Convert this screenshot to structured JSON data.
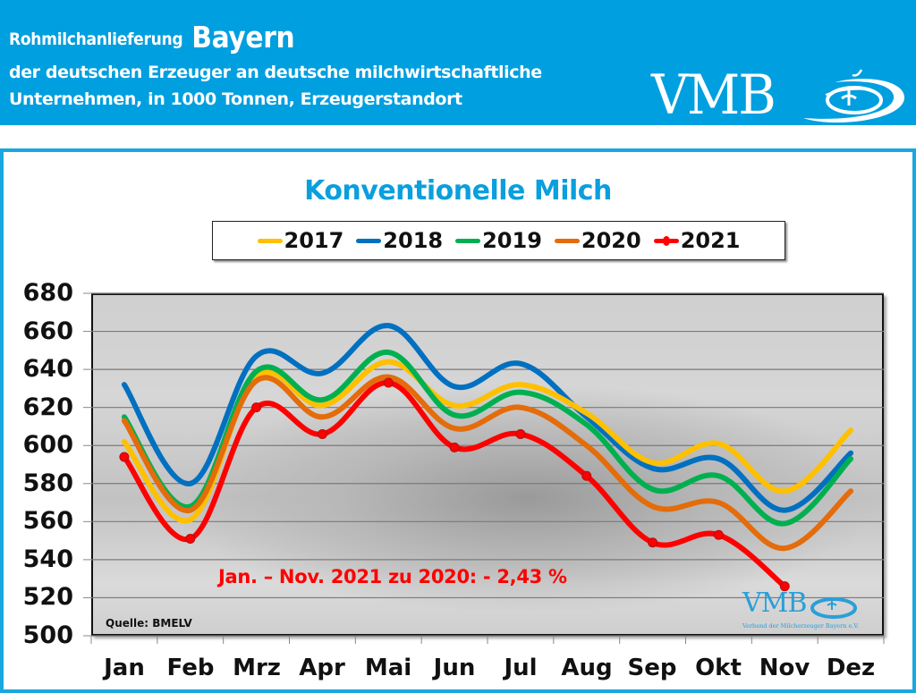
{
  "header": {
    "title_prefix": "Rohmilchanlieferung",
    "title_region": "Bayern",
    "subtitle_line1": "der deutschen Erzeuger an deutsche milchwirtschaftliche",
    "subtitle_line2": "Unternehmen, in 1000 Tonnen, Erzeugerstandort",
    "logo_text": "VMB",
    "background_color": "#009fdf"
  },
  "chart_title": "Konventionelle Milch",
  "legend": [
    {
      "label": "2017",
      "color": "#ffc000"
    },
    {
      "label": "2018",
      "color": "#0070c0"
    },
    {
      "label": "2019",
      "color": "#00b050"
    },
    {
      "label": "2020",
      "color": "#e46c0a"
    },
    {
      "label": "2021",
      "color": "#ff0000"
    }
  ],
  "annotation": "Jan. – Nov. 2021 zu 2020: - 2,43 %",
  "source": "Quelle: BMELV",
  "small_logo": {
    "text": "VMB",
    "subtitle": "Verband der Milcherzeuger Bayern e.V."
  },
  "yaxis_ticks": [
    "680",
    "660",
    "640",
    "620",
    "600",
    "580",
    "560",
    "540",
    "520",
    "500"
  ],
  "xaxis_ticks": [
    "Jan",
    "Feb",
    "Mrz",
    "Apr",
    "Mai",
    "Jun",
    "Jul",
    "Aug",
    "Sep",
    "Okt",
    "Nov",
    "Dez"
  ],
  "chart_data": {
    "type": "line",
    "title": "Konventionelle Milch",
    "subtitle": "Rohmilchanlieferung Bayern der deutschen Erzeuger an deutsche milchwirtschaftliche Unternehmen, in 1000 Tonnen, Erzeugerstandort",
    "xlabel": "",
    "ylabel": "1000 Tonnen",
    "categories": [
      "Jan",
      "Feb",
      "Mrz",
      "Apr",
      "Mai",
      "Jun",
      "Jul",
      "Aug",
      "Sep",
      "Okt",
      "Nov",
      "Dez"
    ],
    "ylim": [
      500,
      680
    ],
    "yticks": [
      500,
      520,
      540,
      560,
      580,
      600,
      620,
      640,
      660,
      680
    ],
    "grid": true,
    "legend_position": "top",
    "smoothed": true,
    "series": [
      {
        "name": "2017",
        "color": "#ffc000",
        "values": [
          602,
          561,
          636,
          621,
          644,
          621,
          632,
          617,
          591,
          601,
          576,
          608
        ]
      },
      {
        "name": "2018",
        "color": "#0070c0",
        "values": [
          632,
          580,
          647,
          638,
          663,
          631,
          643,
          615,
          588,
          593,
          566,
          596
        ]
      },
      {
        "name": "2019",
        "color": "#00b050",
        "values": [
          615,
          568,
          639,
          624,
          649,
          616,
          628,
          611,
          577,
          584,
          559,
          593
        ]
      },
      {
        "name": "2020",
        "color": "#e46c0a",
        "values": [
          613,
          566,
          634,
          615,
          636,
          609,
          620,
          600,
          568,
          570,
          546,
          576
        ]
      },
      {
        "name": "2021",
        "color": "#ff0000",
        "values": [
          594,
          551,
          620,
          606,
          633,
          599,
          606,
          584,
          549,
          553,
          526,
          null
        ],
        "markers": true
      }
    ],
    "annotations": [
      "Jan. – Nov. 2021 zu 2020: - 2,43 %",
      "Quelle: BMELV"
    ]
  }
}
